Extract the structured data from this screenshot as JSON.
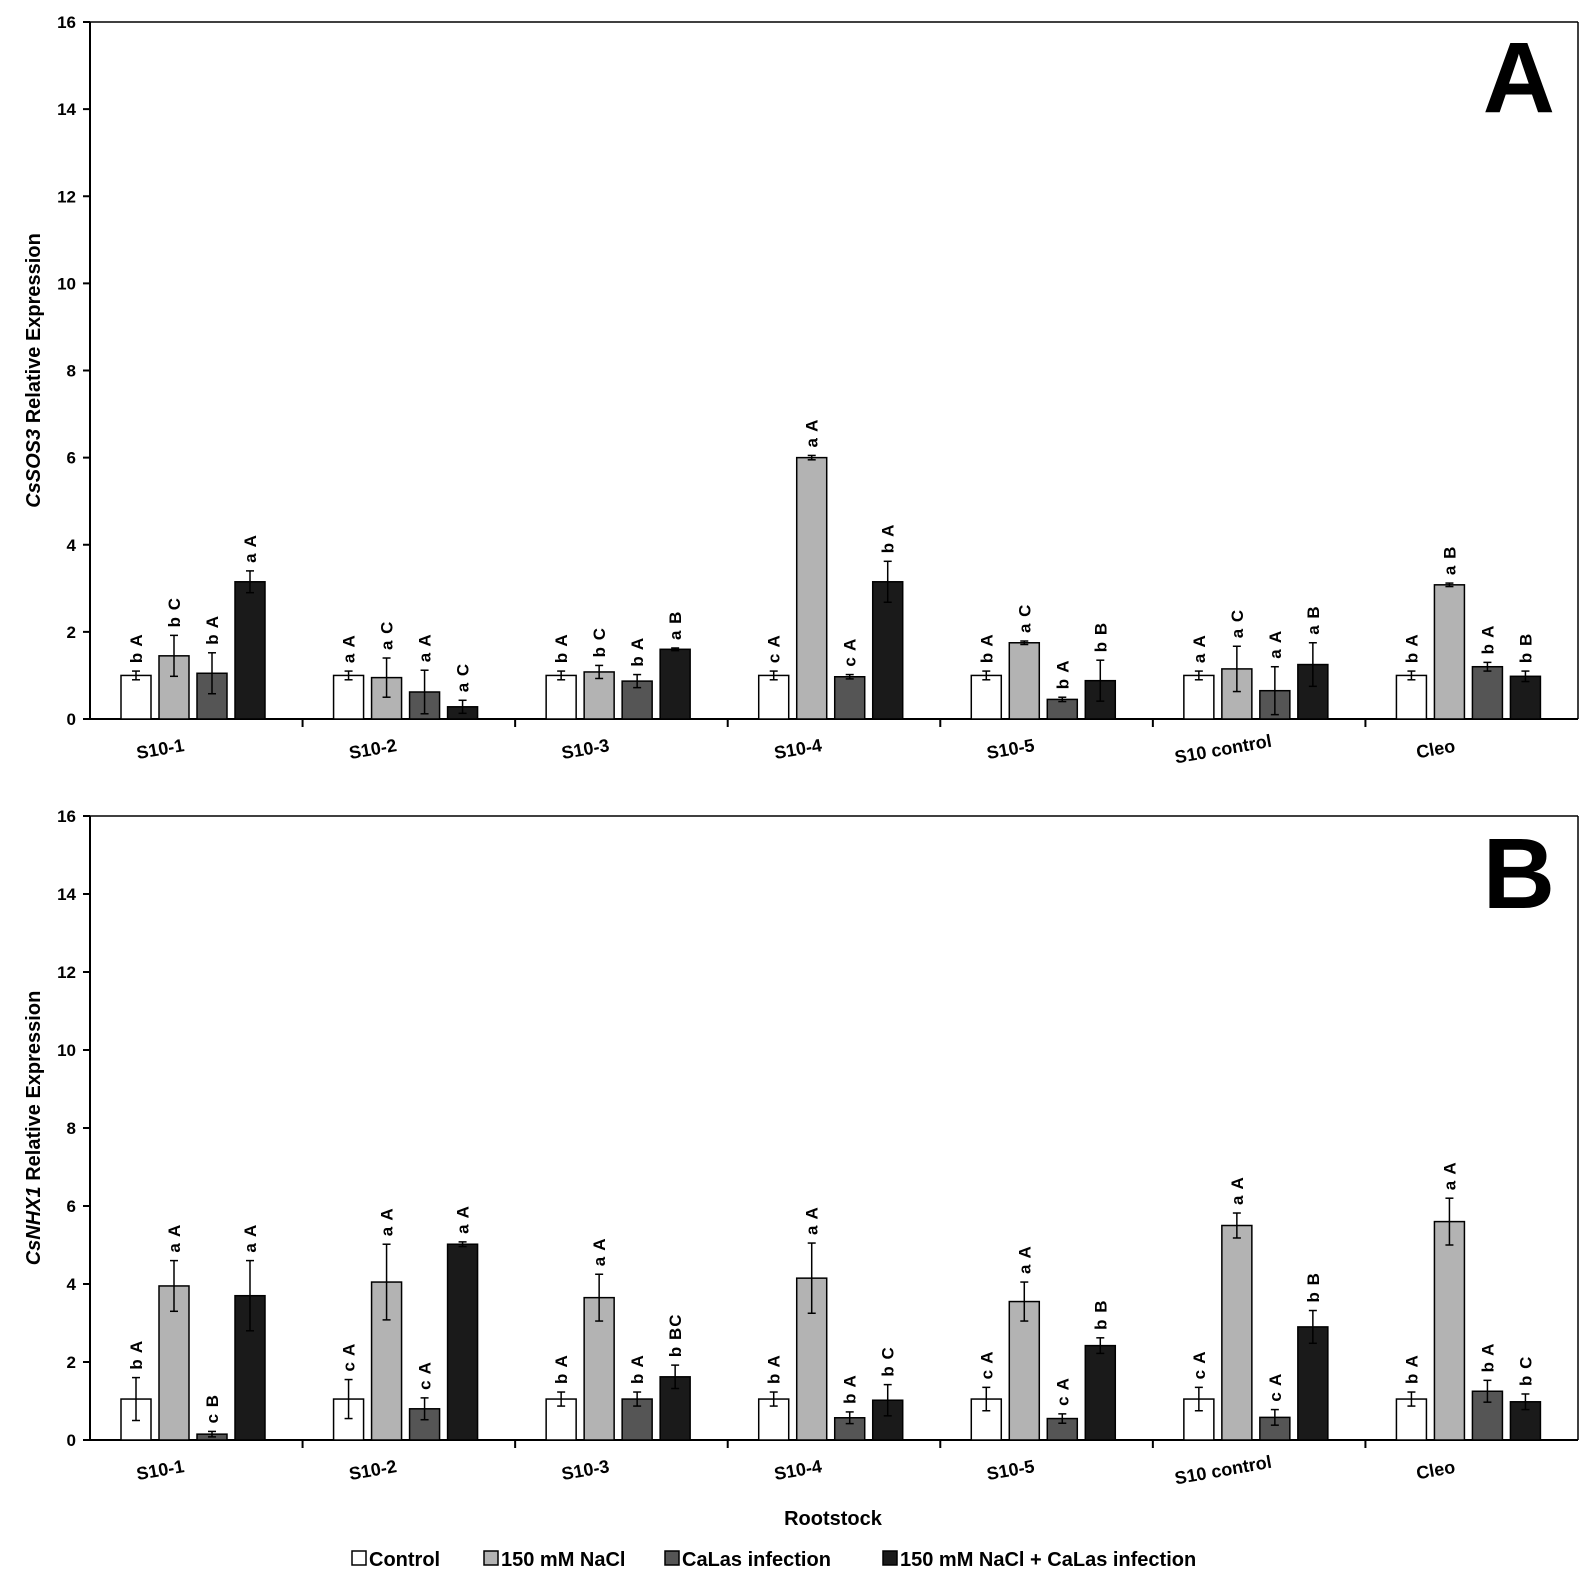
{
  "chart_data": [
    {
      "type": "bar",
      "panel": "A",
      "ylabel_italic": "CsSOS3",
      "ylabel_rest": " Relative Expression",
      "xlabel": "",
      "ylim": [
        0,
        16
      ],
      "yticks": [
        0,
        2,
        4,
        6,
        8,
        10,
        12,
        14,
        16
      ],
      "categories": [
        "S10-1",
        "S10-2",
        "S10-3",
        "S10-4",
        "S10-5",
        "S10 control",
        "Cleo"
      ],
      "series": [
        {
          "name": "Control",
          "color": "#ffffff",
          "values": [
            1.0,
            1.0,
            1.0,
            1.0,
            1.0,
            1.0,
            1.0
          ],
          "errors": [
            0.1,
            0.1,
            0.1,
            0.1,
            0.1,
            0.1,
            0.1
          ],
          "labels": [
            "b A",
            "a A",
            "b A",
            "c A",
            "b A",
            "a A",
            "b A"
          ]
        },
        {
          "name": "150 mM NaCl",
          "color": "#b3b3b3",
          "values": [
            1.45,
            0.95,
            1.08,
            6.0,
            1.75,
            1.15,
            3.08
          ],
          "errors": [
            0.47,
            0.45,
            0.15,
            0.05,
            0.04,
            0.52,
            0.04
          ],
          "labels": [
            "b C",
            "a C",
            "b C",
            "a A",
            "a C",
            "a C",
            "a B"
          ]
        },
        {
          "name": "CaLas infection",
          "color": "#555555",
          "values": [
            1.05,
            0.62,
            0.87,
            0.97,
            0.45,
            0.65,
            1.2
          ],
          "errors": [
            0.47,
            0.5,
            0.15,
            0.05,
            0.05,
            0.55,
            0.1
          ],
          "labels": [
            "b A",
            "a A",
            "b A",
            "c A",
            "b A",
            "a A",
            "b A"
          ]
        },
        {
          "name": "150 mM NaCl + CaLas infection",
          "color": "#1a1a1a",
          "values": [
            3.15,
            0.28,
            1.6,
            3.15,
            0.88,
            1.25,
            0.98
          ],
          "errors": [
            0.25,
            0.15,
            0.03,
            0.47,
            0.47,
            0.5,
            0.12
          ],
          "labels": [
            "a A",
            "a C",
            "a B",
            "b A",
            "b B",
            "a B",
            "b B"
          ]
        }
      ]
    },
    {
      "type": "bar",
      "panel": "B",
      "ylabel_italic": "CsNHX1",
      "ylabel_rest": " Relative Expression",
      "xlabel": "Rootstock",
      "ylim": [
        0,
        16
      ],
      "yticks": [
        0,
        2,
        4,
        6,
        8,
        10,
        12,
        14,
        16
      ],
      "categories": [
        "S10-1",
        "S10-2",
        "S10-3",
        "S10-4",
        "S10-5",
        "S10 control",
        "Cleo"
      ],
      "series": [
        {
          "name": "Control",
          "color": "#ffffff",
          "values": [
            1.05,
            1.05,
            1.05,
            1.05,
            1.05,
            1.05,
            1.05
          ],
          "errors": [
            0.55,
            0.5,
            0.18,
            0.18,
            0.3,
            0.3,
            0.18
          ],
          "labels": [
            "b A",
            "c A",
            "b A",
            "b A",
            "c A",
            "c A",
            "b A"
          ]
        },
        {
          "name": "150 mM NaCl",
          "color": "#b3b3b3",
          "values": [
            3.95,
            4.05,
            3.65,
            4.15,
            3.55,
            5.5,
            5.6
          ],
          "errors": [
            0.65,
            0.97,
            0.6,
            0.9,
            0.5,
            0.32,
            0.6
          ],
          "labels": [
            "a A",
            "a A",
            "a A",
            "a A",
            "a A",
            "a A",
            "a A"
          ]
        },
        {
          "name": "CaLas infection",
          "color": "#555555",
          "values": [
            0.15,
            0.8,
            1.05,
            0.57,
            0.55,
            0.58,
            1.25
          ],
          "errors": [
            0.07,
            0.28,
            0.18,
            0.15,
            0.12,
            0.2,
            0.28
          ],
          "labels": [
            "c B",
            "c A",
            "b A",
            "b A",
            "c A",
            "c A",
            "b A"
          ]
        },
        {
          "name": "150 mM NaCl + CaLas infection",
          "color": "#1a1a1a",
          "values": [
            3.7,
            5.02,
            1.62,
            1.02,
            2.42,
            2.9,
            0.98
          ],
          "errors": [
            0.9,
            0.06,
            0.3,
            0.4,
            0.2,
            0.42,
            0.2
          ],
          "labels": [
            "a A",
            "a A",
            "b BC",
            "b C",
            "b B",
            "b B",
            "b C"
          ]
        }
      ]
    }
  ],
  "legend": [
    {
      "label": "Control",
      "color": "#ffffff"
    },
    {
      "label": "150 mM NaCl",
      "color": "#b3b3b3"
    },
    {
      "label": "CaLas infection",
      "color": "#555555"
    },
    {
      "label": "150 mM NaCl + CaLas infection",
      "color": "#1a1a1a"
    }
  ]
}
